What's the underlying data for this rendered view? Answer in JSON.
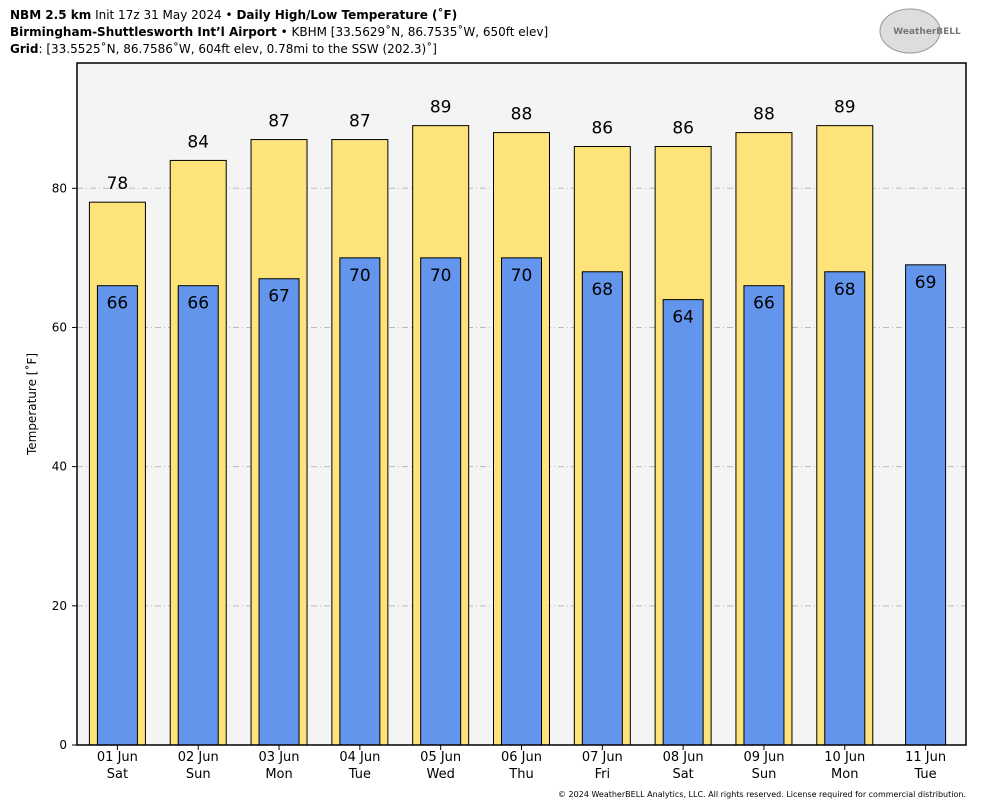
{
  "header": {
    "line1": {
      "model": "NBM 2.5 km",
      "init": "Init 17z 31 May 2024",
      "sep": "•",
      "product": "Daily High/Low Temperature (˚F)"
    },
    "line2": {
      "station": "Birmingham-Shuttlesworth Int’l Airport",
      "sep": "•",
      "info": "KBHM [33.5629˚N, 86.7535˚W, 650ft elev]"
    },
    "line3": {
      "label": "Grid",
      "info": ": [33.5525˚N, 86.7586˚W, 604ft elev, 0.78mi to the SSW (202.3)˚]"
    },
    "logo": "WeatherBELL"
  },
  "chart_data": {
    "type": "bar",
    "ylabel": "Temperature [˚F]",
    "categories": [
      "01 Jun",
      "02 Jun",
      "03 Jun",
      "04 Jun",
      "05 Jun",
      "06 Jun",
      "07 Jun",
      "08 Jun",
      "09 Jun",
      "10 Jun",
      "11 Jun"
    ],
    "weekdays": [
      "Sat",
      "Sun",
      "Mon",
      "Tue",
      "Wed",
      "Thu",
      "Fri",
      "Sat",
      "Sun",
      "Mon",
      "Tue"
    ],
    "series": [
      {
        "color": "#fee27a",
        "values": [
          78,
          84,
          87,
          87,
          89,
          88,
          86,
          86,
          88,
          89,
          null
        ]
      },
      {
        "color": "#6495ed",
        "values": [
          66,
          66,
          67,
          70,
          70,
          70,
          68,
          64,
          66,
          68,
          69
        ]
      }
    ],
    "ylim": [
      0,
      98
    ],
    "yticks": [
      0,
      20,
      40,
      60,
      80
    ],
    "grid": true
  },
  "footer": "© 2024 WeatherBELL Analytics, LLC. All rights reserved. License required for commercial distribution."
}
